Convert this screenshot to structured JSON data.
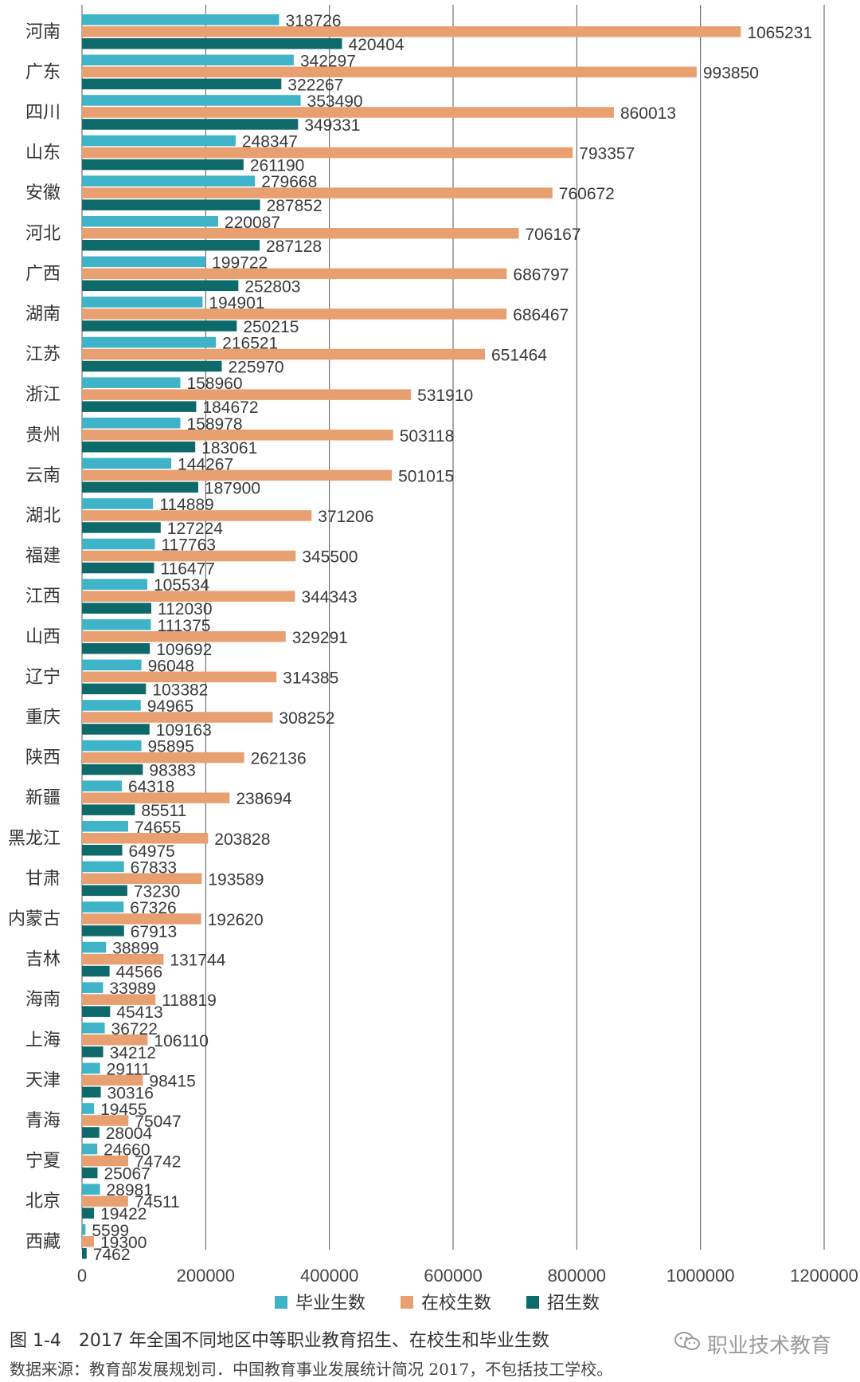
{
  "chart_data": {
    "type": "bar",
    "orientation": "horizontal",
    "title": "",
    "xlabel": "",
    "ylabel": "",
    "xlim": [
      0,
      1200000
    ],
    "x_ticks": [
      "0",
      "200000",
      "400000",
      "600000",
      "800000",
      "1000000",
      "1200000"
    ],
    "grid": "vertical",
    "legend_position": "bottom",
    "categories": [
      "河南",
      "广东",
      "四川",
      "山东",
      "安徽",
      "河北",
      "广西",
      "湖南",
      "江苏",
      "浙江",
      "贵州",
      "云南",
      "湖北",
      "福建",
      "江西",
      "山西",
      "辽宁",
      "重庆",
      "陕西",
      "新疆",
      "黑龙江",
      "甘肃",
      "内蒙古",
      "吉林",
      "海南",
      "上海",
      "天津",
      "青海",
      "宁夏",
      "北京",
      "西藏"
    ],
    "series": [
      {
        "name": "毕业生数",
        "color": "#3fb3c8",
        "values": [
          318726,
          342297,
          353490,
          248347,
          279668,
          220087,
          199722,
          194901,
          216521,
          158960,
          158978,
          144267,
          114889,
          117763,
          105534,
          111375,
          96048,
          94965,
          95895,
          64318,
          74655,
          67833,
          67326,
          38899,
          33989,
          36722,
          29111,
          19455,
          24660,
          28981,
          5599
        ]
      },
      {
        "name": "在校生数",
        "color": "#e8a070",
        "values": [
          1065231,
          993850,
          860013,
          793357,
          760672,
          706167,
          686797,
          686467,
          651464,
          531910,
          503118,
          501015,
          371206,
          345500,
          344343,
          329291,
          314385,
          308252,
          262136,
          238694,
          203828,
          193589,
          192620,
          131744,
          118819,
          106110,
          98415,
          75047,
          74742,
          74511,
          19300
        ]
      },
      {
        "name": "招生数",
        "color": "#0e6a6a",
        "values": [
          420404,
          322267,
          349331,
          261190,
          287852,
          287128,
          252803,
          250215,
          225970,
          184672,
          183061,
          187900,
          127224,
          116477,
          112030,
          109692,
          103382,
          109163,
          98383,
          85511,
          64975,
          73230,
          67913,
          44566,
          45413,
          34212,
          30316,
          28004,
          25067,
          19422,
          7462
        ]
      }
    ]
  },
  "caption": "图 1-4　2017 年全国不同地区中等职业教育招生、在校生和毕业生数",
  "source": "数据来源：教育部发展规划司．中国教育事业发展统计简况 2017，不包括技工学校。",
  "watermark": {
    "text": "职业技术教育",
    "icon": "wechat-icon"
  }
}
